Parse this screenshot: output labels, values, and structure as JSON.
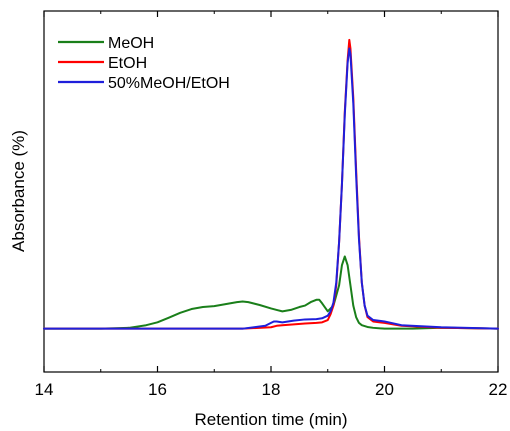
{
  "chart_data": {
    "type": "line",
    "xlabel": "Retention time (min)",
    "ylabel": "Absorbance (%)",
    "xlim": [
      14,
      22
    ],
    "ylim": [
      -0.15,
      1.1
    ],
    "x_ticks": [
      14,
      16,
      18,
      20,
      22
    ],
    "x_tick_labels": [
      "14",
      "16",
      "18",
      "20",
      "22"
    ],
    "y_tick_labels_shown": false,
    "grid": false,
    "legend_position": "top-left",
    "series": [
      {
        "name": "MeOH",
        "color": "#1a7f1a",
        "x": [
          14.0,
          15.0,
          15.5,
          15.8,
          16.0,
          16.2,
          16.4,
          16.6,
          16.8,
          17.0,
          17.2,
          17.4,
          17.5,
          17.6,
          17.8,
          18.0,
          18.1,
          18.2,
          18.35,
          18.5,
          18.6,
          18.7,
          18.8,
          18.85,
          18.9,
          19.0,
          19.1,
          19.2,
          19.25,
          19.3,
          19.35,
          19.4,
          19.45,
          19.5,
          19.55,
          19.6,
          19.7,
          19.8,
          20.0,
          20.5,
          21.0,
          22.0
        ],
        "y": [
          0.0,
          0.0,
          0.003,
          0.012,
          0.022,
          0.038,
          0.055,
          0.068,
          0.075,
          0.078,
          0.085,
          0.092,
          0.094,
          0.092,
          0.082,
          0.07,
          0.065,
          0.06,
          0.065,
          0.075,
          0.08,
          0.092,
          0.1,
          0.1,
          0.088,
          0.06,
          0.08,
          0.15,
          0.22,
          0.25,
          0.22,
          0.15,
          0.08,
          0.04,
          0.02,
          0.012,
          0.006,
          0.003,
          0.0,
          0.0,
          0.003,
          0.0
        ]
      },
      {
        "name": "EtOH",
        "color": "#ff0000",
        "x": [
          14.0,
          16.0,
          17.5,
          18.0,
          18.1,
          18.2,
          18.4,
          18.6,
          18.8,
          18.9,
          19.0,
          19.05,
          19.1,
          19.15,
          19.2,
          19.25,
          19.3,
          19.35,
          19.38,
          19.4,
          19.45,
          19.5,
          19.55,
          19.6,
          19.65,
          19.7,
          19.8,
          20.0,
          20.3,
          21.0,
          22.0
        ],
        "y": [
          0.0,
          0.0,
          0.0,
          0.005,
          0.01,
          0.012,
          0.015,
          0.018,
          0.02,
          0.022,
          0.03,
          0.05,
          0.08,
          0.15,
          0.3,
          0.5,
          0.75,
          0.93,
          1.0,
          0.97,
          0.8,
          0.55,
          0.32,
          0.16,
          0.08,
          0.04,
          0.025,
          0.02,
          0.01,
          0.003,
          0.0
        ]
      },
      {
        "name": "50%MeOH/EtOH",
        "color": "#1f1fdb",
        "x": [
          14.0,
          16.0,
          17.5,
          17.9,
          18.0,
          18.05,
          18.1,
          18.2,
          18.4,
          18.6,
          18.8,
          18.9,
          19.0,
          19.05,
          19.1,
          19.15,
          19.2,
          19.25,
          19.3,
          19.35,
          19.38,
          19.4,
          19.45,
          19.5,
          19.55,
          19.6,
          19.65,
          19.7,
          19.8,
          20.0,
          20.3,
          21.0,
          22.0
        ],
        "y": [
          0.0,
          0.0,
          0.0,
          0.01,
          0.02,
          0.025,
          0.025,
          0.022,
          0.028,
          0.032,
          0.033,
          0.036,
          0.045,
          0.06,
          0.09,
          0.16,
          0.3,
          0.5,
          0.74,
          0.92,
          0.97,
          0.95,
          0.78,
          0.53,
          0.31,
          0.16,
          0.08,
          0.045,
          0.03,
          0.025,
          0.012,
          0.005,
          0.0
        ]
      }
    ]
  }
}
